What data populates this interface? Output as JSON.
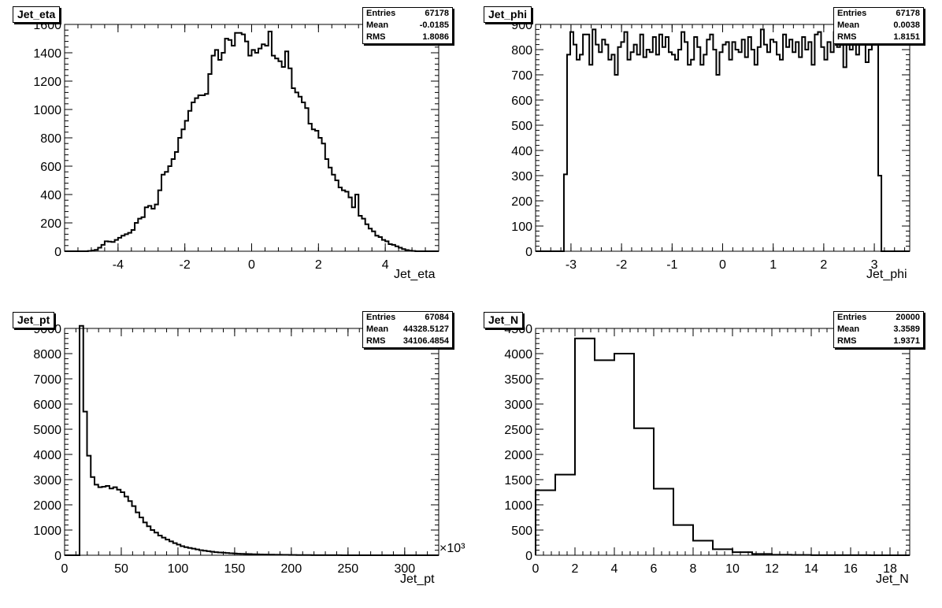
{
  "pads": [
    {
      "title": "Jet_eta",
      "stats": {
        "entries_label": "Entries",
        "entries": "67178",
        "mean_label": "Mean",
        "mean": "-0.0185",
        "rms_label": "RMS",
        "rms": "1.8086"
      },
      "xlabel": "Jet_eta"
    },
    {
      "title": "Jet_phi",
      "stats": {
        "entries_label": "Entries",
        "entries": "67178",
        "mean_label": "Mean",
        "mean": "0.0038",
        "rms_label": "RMS",
        "rms": "1.8151"
      },
      "xlabel": "Jet_phi"
    },
    {
      "title": "Jet_pt",
      "stats": {
        "entries_label": "Entries",
        "entries": "67084",
        "mean_label": "Mean",
        "mean": "44328.5127",
        "rms_label": "RMS",
        "rms": "34106.4854"
      },
      "xlabel": "Jet_pt",
      "x_exponent": "×10³"
    },
    {
      "title": "Jet_N",
      "stats": {
        "entries_label": "Entries",
        "entries": "20000",
        "mean_label": "Mean",
        "mean": "3.3589",
        "rms_label": "RMS",
        "rms": "1.9371"
      },
      "xlabel": "Jet_N"
    }
  ],
  "chart_data": [
    {
      "type": "bar",
      "title": "Jet_eta",
      "xlabel": "Jet_eta",
      "xlim": [
        -5.6,
        5.6
      ],
      "ylim": [
        0,
        1600
      ],
      "bin_edges_range": [
        -5.0,
        5.0
      ],
      "bins": 100,
      "xticks": [
        -4,
        -2,
        0,
        2,
        4
      ],
      "yticks": [
        0,
        200,
        400,
        600,
        800,
        1000,
        1200,
        1400,
        1600
      ],
      "values": [
        0,
        2,
        5,
        10,
        25,
        45,
        70,
        68,
        65,
        80,
        95,
        110,
        120,
        130,
        150,
        200,
        230,
        240,
        310,
        320,
        300,
        330,
        430,
        540,
        560,
        600,
        650,
        700,
        800,
        860,
        920,
        990,
        1050,
        1080,
        1100,
        1100,
        1110,
        1250,
        1380,
        1420,
        1350,
        1400,
        1500,
        1490,
        1450,
        1540,
        1540,
        1530,
        1480,
        1380,
        1420,
        1400,
        1430,
        1460,
        1450,
        1550,
        1380,
        1360,
        1340,
        1300,
        1410,
        1290,
        1150,
        1120,
        1090,
        1050,
        1010,
        900,
        860,
        850,
        800,
        760,
        650,
        590,
        540,
        500,
        450,
        430,
        420,
        380,
        310,
        400,
        250,
        230,
        190,
        160,
        140,
        110,
        100,
        80,
        70,
        50,
        45,
        35,
        25,
        15,
        8,
        4,
        2,
        0
      ],
      "grid": false,
      "legend": "none"
    },
    {
      "type": "bar",
      "title": "Jet_phi",
      "xlabel": "Jet_phi",
      "xlim": [
        -3.7,
        3.7
      ],
      "ylim": [
        0,
        900
      ],
      "bin_edges_range": [
        -3.14,
        3.14
      ],
      "bins": 100,
      "xticks": [
        -3,
        -2,
        -1,
        0,
        1,
        2,
        3
      ],
      "yticks": [
        0,
        100,
        200,
        300,
        400,
        500,
        600,
        700,
        800,
        900
      ],
      "values": [
        305,
        780,
        870,
        820,
        760,
        780,
        860,
        860,
        740,
        880,
        820,
        790,
        840,
        820,
        760,
        780,
        700,
        810,
        830,
        870,
        760,
        790,
        820,
        780,
        860,
        770,
        800,
        790,
        850,
        780,
        860,
        810,
        850,
        790,
        780,
        760,
        800,
        870,
        830,
        740,
        760,
        850,
        810,
        740,
        780,
        840,
        860,
        800,
        700,
        790,
        820,
        830,
        760,
        830,
        800,
        790,
        840,
        770,
        850,
        800,
        740,
        810,
        880,
        820,
        790,
        840,
        830,
        780,
        760,
        860,
        810,
        840,
        790,
        830,
        770,
        850,
        800,
        830,
        740,
        860,
        870,
        810,
        760,
        830,
        790,
        870,
        810,
        830,
        730,
        880,
        800,
        860,
        780,
        840,
        830,
        750,
        800,
        860,
        870,
        300
      ],
      "grid": false,
      "legend": "none"
    },
    {
      "type": "bar",
      "title": "Jet_pt",
      "xlabel": "Jet_pt",
      "x_multiplier": 1000,
      "xlim": [
        0,
        330
      ],
      "ylim": [
        0,
        9000
      ],
      "bin_edges_range": [
        0,
        330
      ],
      "bins": 100,
      "xticks": [
        0,
        50,
        100,
        150,
        200,
        250,
        300
      ],
      "yticks": [
        0,
        1000,
        2000,
        3000,
        4000,
        5000,
        6000,
        7000,
        8000,
        9000
      ],
      "values": [
        0,
        0,
        0,
        0,
        9100,
        5700,
        3950,
        3100,
        2800,
        2700,
        2720,
        2750,
        2650,
        2700,
        2600,
        2500,
        2330,
        2150,
        1950,
        1700,
        1500,
        1300,
        1150,
        1000,
        900,
        780,
        700,
        620,
        550,
        480,
        420,
        360,
        320,
        290,
        260,
        230,
        200,
        180,
        160,
        140,
        120,
        110,
        100,
        90,
        80,
        70,
        60,
        55,
        50,
        45,
        40,
        36,
        32,
        28,
        25,
        22,
        20,
        18,
        16,
        14,
        12,
        10,
        9,
        8,
        7,
        6,
        5,
        4,
        4,
        3,
        3,
        2,
        2,
        2,
        1,
        1,
        1,
        1,
        1,
        0,
        0,
        0,
        0,
        0,
        0,
        0,
        0,
        0,
        0,
        0,
        0,
        0,
        0,
        0,
        0,
        0,
        0,
        0,
        0,
        0
      ],
      "grid": false,
      "legend": "none"
    },
    {
      "type": "bar",
      "title": "Jet_N",
      "xlabel": "Jet_N",
      "xlim": [
        0,
        19
      ],
      "ylim": [
        0,
        4500
      ],
      "bin_edges_range": [
        0,
        19
      ],
      "bins": 19,
      "xticks": [
        0,
        2,
        4,
        6,
        8,
        10,
        12,
        14,
        16,
        18
      ],
      "yticks": [
        0,
        500,
        1000,
        1500,
        2000,
        2500,
        3000,
        3500,
        4000,
        4500
      ],
      "values": [
        1290,
        1600,
        4300,
        3870,
        4000,
        2520,
        1320,
        600,
        290,
        120,
        60,
        25,
        10,
        5,
        2,
        1,
        1,
        0,
        0
      ],
      "grid": false,
      "legend": "none"
    }
  ]
}
